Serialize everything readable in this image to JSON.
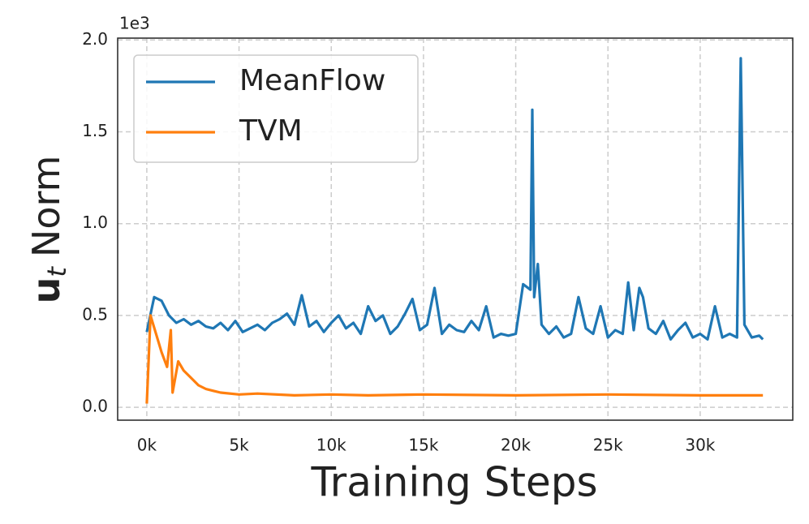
{
  "chart_data": {
    "type": "line",
    "ylabel": {
      "main": "u",
      "sub": "t",
      "rest": "Norm"
    },
    "xlabel": "Training Steps",
    "y_offset_label": "1e3",
    "xlim": [
      -1580,
      35020
    ],
    "ylim": [
      -0.07,
      2.01
    ],
    "xticks": [
      {
        "value": 0,
        "label": "0k"
      },
      {
        "value": 5000,
        "label": "5k"
      },
      {
        "value": 10000,
        "label": "10k"
      },
      {
        "value": 15000,
        "label": "15k"
      },
      {
        "value": 20000,
        "label": "20k"
      },
      {
        "value": 25000,
        "label": "25k"
      },
      {
        "value": 30000,
        "label": "30k"
      }
    ],
    "yticks": [
      {
        "value": 0,
        "label": "0.0"
      },
      0.5,
      {
        "value": 1,
        "label": "1.0"
      },
      1.5,
      {
        "value": 2,
        "label": "2.0"
      }
    ],
    "grid": true,
    "legend": "upper left",
    "series": [
      {
        "name": "MeanFlow",
        "color": "#1f77b4",
        "x": [
          0,
          400,
          800,
          1200,
          1600,
          2000,
          2400,
          2800,
          3200,
          3600,
          4000,
          4400,
          4800,
          5200,
          5600,
          6000,
          6400,
          6800,
          7200,
          7600,
          8000,
          8400,
          8800,
          9200,
          9600,
          10000,
          10400,
          10800,
          11200,
          11600,
          12000,
          12400,
          12800,
          13200,
          13600,
          14000,
          14400,
          14800,
          15200,
          15600,
          16000,
          16400,
          16800,
          17200,
          17600,
          18000,
          18400,
          18800,
          19200,
          19600,
          20000,
          20400,
          20800,
          20900,
          21000,
          21200,
          21400,
          21800,
          22200,
          22600,
          23000,
          23400,
          23800,
          24200,
          24600,
          25000,
          25400,
          25800,
          26100,
          26400,
          26700,
          26900,
          27200,
          27600,
          28000,
          28400,
          28800,
          29200,
          29600,
          30000,
          30400,
          30800,
          31200,
          31600,
          32000,
          32200,
          32400,
          32800,
          33200,
          33400
        ],
        "values": [
          0.41,
          0.6,
          0.58,
          0.5,
          0.46,
          0.48,
          0.45,
          0.47,
          0.44,
          0.43,
          0.46,
          0.42,
          0.47,
          0.41,
          0.43,
          0.45,
          0.42,
          0.46,
          0.48,
          0.51,
          0.45,
          0.61,
          0.44,
          0.47,
          0.41,
          0.46,
          0.5,
          0.43,
          0.46,
          0.4,
          0.55,
          0.47,
          0.5,
          0.4,
          0.44,
          0.51,
          0.59,
          0.42,
          0.45,
          0.65,
          0.4,
          0.45,
          0.42,
          0.41,
          0.47,
          0.42,
          0.55,
          0.38,
          0.4,
          0.39,
          0.4,
          0.67,
          0.64,
          1.62,
          0.6,
          0.78,
          0.45,
          0.4,
          0.44,
          0.38,
          0.4,
          0.6,
          0.43,
          0.4,
          0.55,
          0.38,
          0.42,
          0.4,
          0.68,
          0.42,
          0.65,
          0.6,
          0.43,
          0.4,
          0.47,
          0.37,
          0.42,
          0.46,
          0.38,
          0.4,
          0.37,
          0.55,
          0.38,
          0.4,
          0.38,
          1.9,
          0.45,
          0.38,
          0.39,
          0.37
        ]
      },
      {
        "name": "TVM",
        "color": "#ff7f0e",
        "x": [
          0,
          200,
          500,
          800,
          1100,
          1300,
          1400,
          1700,
          2000,
          2400,
          2800,
          3200,
          3600,
          4000,
          5000,
          6000,
          8000,
          10000,
          12000,
          15000,
          20000,
          25000,
          30000,
          33400
        ],
        "values": [
          0.02,
          0.5,
          0.4,
          0.3,
          0.22,
          0.42,
          0.08,
          0.25,
          0.2,
          0.16,
          0.12,
          0.1,
          0.09,
          0.08,
          0.07,
          0.075,
          0.065,
          0.07,
          0.065,
          0.07,
          0.065,
          0.07,
          0.065,
          0.065
        ]
      }
    ]
  }
}
